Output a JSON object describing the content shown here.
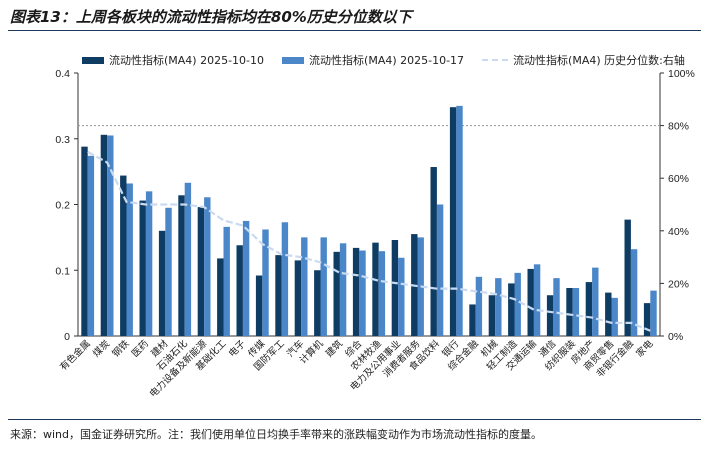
{
  "title": "图表13：上周各板块的流动性指标均在80%历史分位数以下",
  "source": "来源：wind，国金证券研究所。注：我们使用单位日均换手率带来的涨跌幅变动作为市场流动性指标的度量。",
  "legend": {
    "series1": "流动性指标(MA4) 2025-10-10",
    "series2": "流动性指标(MA4) 2025-10-17",
    "series3": "流动性指标(MA4) 历史分位数:右轴"
  },
  "colors": {
    "series1": "#0f3c63",
    "series2": "#4a86c8",
    "series3": "#c9daf1",
    "refline": "#9a9a9a"
  },
  "chart_data": {
    "type": "bar",
    "categories": [
      "有色金属",
      "煤炭",
      "钢铁",
      "医药",
      "建材",
      "石油石化",
      "电力设备及新能源",
      "基础化工",
      "电子",
      "传媒",
      "国防军工",
      "汽车",
      "计算机",
      "建筑",
      "综合",
      "农林牧渔",
      "电力及公用事业",
      "消费者服务",
      "食品饮料",
      "银行",
      "综合金融",
      "机械",
      "轻工制造",
      "交通运输",
      "通信",
      "纺织服装",
      "房地产",
      "商贸零售",
      "非银行金融",
      "家电"
    ],
    "series": [
      {
        "name": "流动性指标(MA4) 2025-10-10",
        "axis": "left",
        "values": [
          0.288,
          0.306,
          0.244,
          0.206,
          0.16,
          0.214,
          0.196,
          0.118,
          0.138,
          0.092,
          0.123,
          0.115,
          0.1,
          0.128,
          0.134,
          0.142,
          0.146,
          0.155,
          0.257,
          0.348,
          0.048,
          0.062,
          0.08,
          0.102,
          0.062,
          0.073,
          0.082,
          0.066,
          0.177,
          0.05
        ]
      },
      {
        "name": "流动性指标(MA4) 2025-10-17",
        "axis": "left",
        "values": [
          0.274,
          0.305,
          0.232,
          0.22,
          0.195,
          0.233,
          0.211,
          0.166,
          0.175,
          0.162,
          0.173,
          0.15,
          0.15,
          0.141,
          0.13,
          0.129,
          0.119,
          0.15,
          0.2,
          0.35,
          0.09,
          0.088,
          0.096,
          0.109,
          0.088,
          0.073,
          0.104,
          0.058,
          0.132,
          0.069
        ]
      },
      {
        "name": "流动性指标(MA4) 历史分位数:右轴",
        "axis": "right",
        "type": "line",
        "values": [
          0.7,
          0.66,
          0.51,
          0.5,
          0.5,
          0.5,
          0.49,
          0.44,
          0.42,
          0.35,
          0.31,
          0.3,
          0.28,
          0.24,
          0.23,
          0.21,
          0.2,
          0.19,
          0.18,
          0.18,
          0.17,
          0.16,
          0.14,
          0.1,
          0.09,
          0.08,
          0.07,
          0.05,
          0.05,
          0.02
        ]
      }
    ],
    "reference_line": {
      "axis": "right",
      "value": 0.8
    },
    "left_axis": {
      "min": 0,
      "max": 0.4,
      "ticks": [
        0,
        0.1,
        0.2,
        0.3,
        0.4
      ],
      "tick_labels": [
        "0",
        "0.1",
        "0.2",
        "0.3",
        "0.4"
      ]
    },
    "right_axis": {
      "min": 0,
      "max": 1.0,
      "ticks": [
        0,
        0.2,
        0.4,
        0.6,
        0.8,
        1.0
      ],
      "tick_labels": [
        "0%",
        "20%",
        "40%",
        "60%",
        "80%",
        "100%"
      ]
    }
  }
}
